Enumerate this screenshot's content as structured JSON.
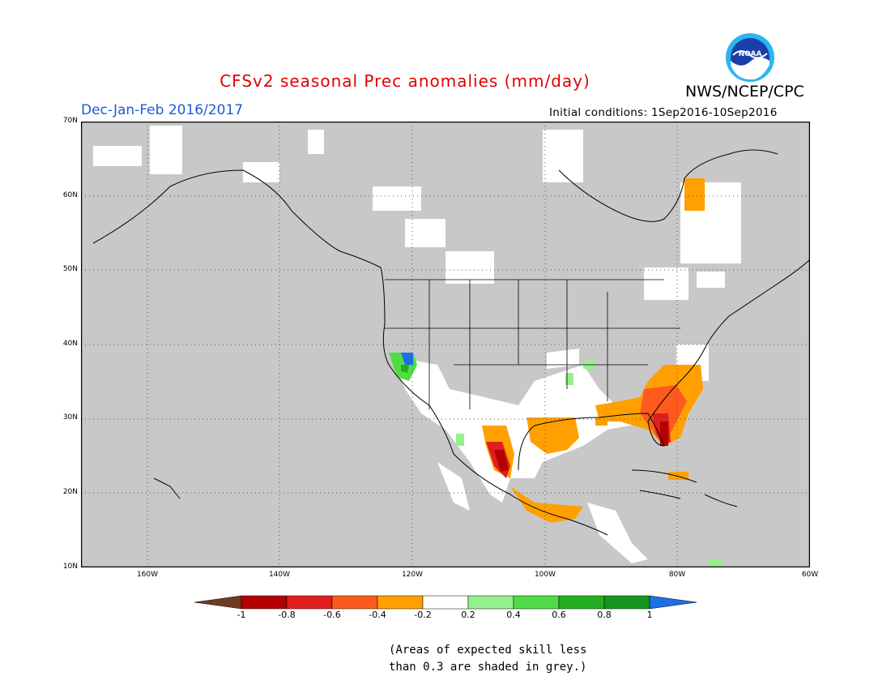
{
  "header": {
    "title": "CFSv2 seasonal Prec anomalies (mm/day)",
    "org": "NWS/NCEP/CPC",
    "logo_text": "NOAA",
    "season": "Dec-Jan-Feb 2016/2017",
    "initial_conditions": "Initial conditions: 1Sep2016-10Sep2016"
  },
  "map": {
    "projection": "lat-lon",
    "lon_range": [
      "170W",
      "60W"
    ],
    "lat_range": [
      "10N",
      "70N"
    ],
    "lat_labels": [
      "70N",
      "60N",
      "50N",
      "40N",
      "30N",
      "20N",
      "10N"
    ],
    "lon_labels": [
      "160W",
      "140W",
      "120W",
      "100W",
      "80W",
      "60W"
    ],
    "grid": true,
    "colors": {
      "ocean_land_grey": "#c8c8c8",
      "border": "#000000",
      "grid": "#555555"
    }
  },
  "colorbar": {
    "labels": [
      "-1",
      "-0.8",
      "-0.6",
      "-0.4",
      "-0.2",
      "0.2",
      "0.4",
      "0.6",
      "0.8",
      "1"
    ],
    "colors": [
      "#6e3b23",
      "#b40000",
      "#e01e1e",
      "#ff5a1e",
      "#ffa000",
      "#ffffff",
      "#96f08c",
      "#50dc46",
      "#23af23",
      "#14961e",
      "#1e6ee6"
    ]
  },
  "note": {
    "line1": "(Areas of expected skill less",
    "line2": "than 0.3 are shaded in grey.)"
  }
}
